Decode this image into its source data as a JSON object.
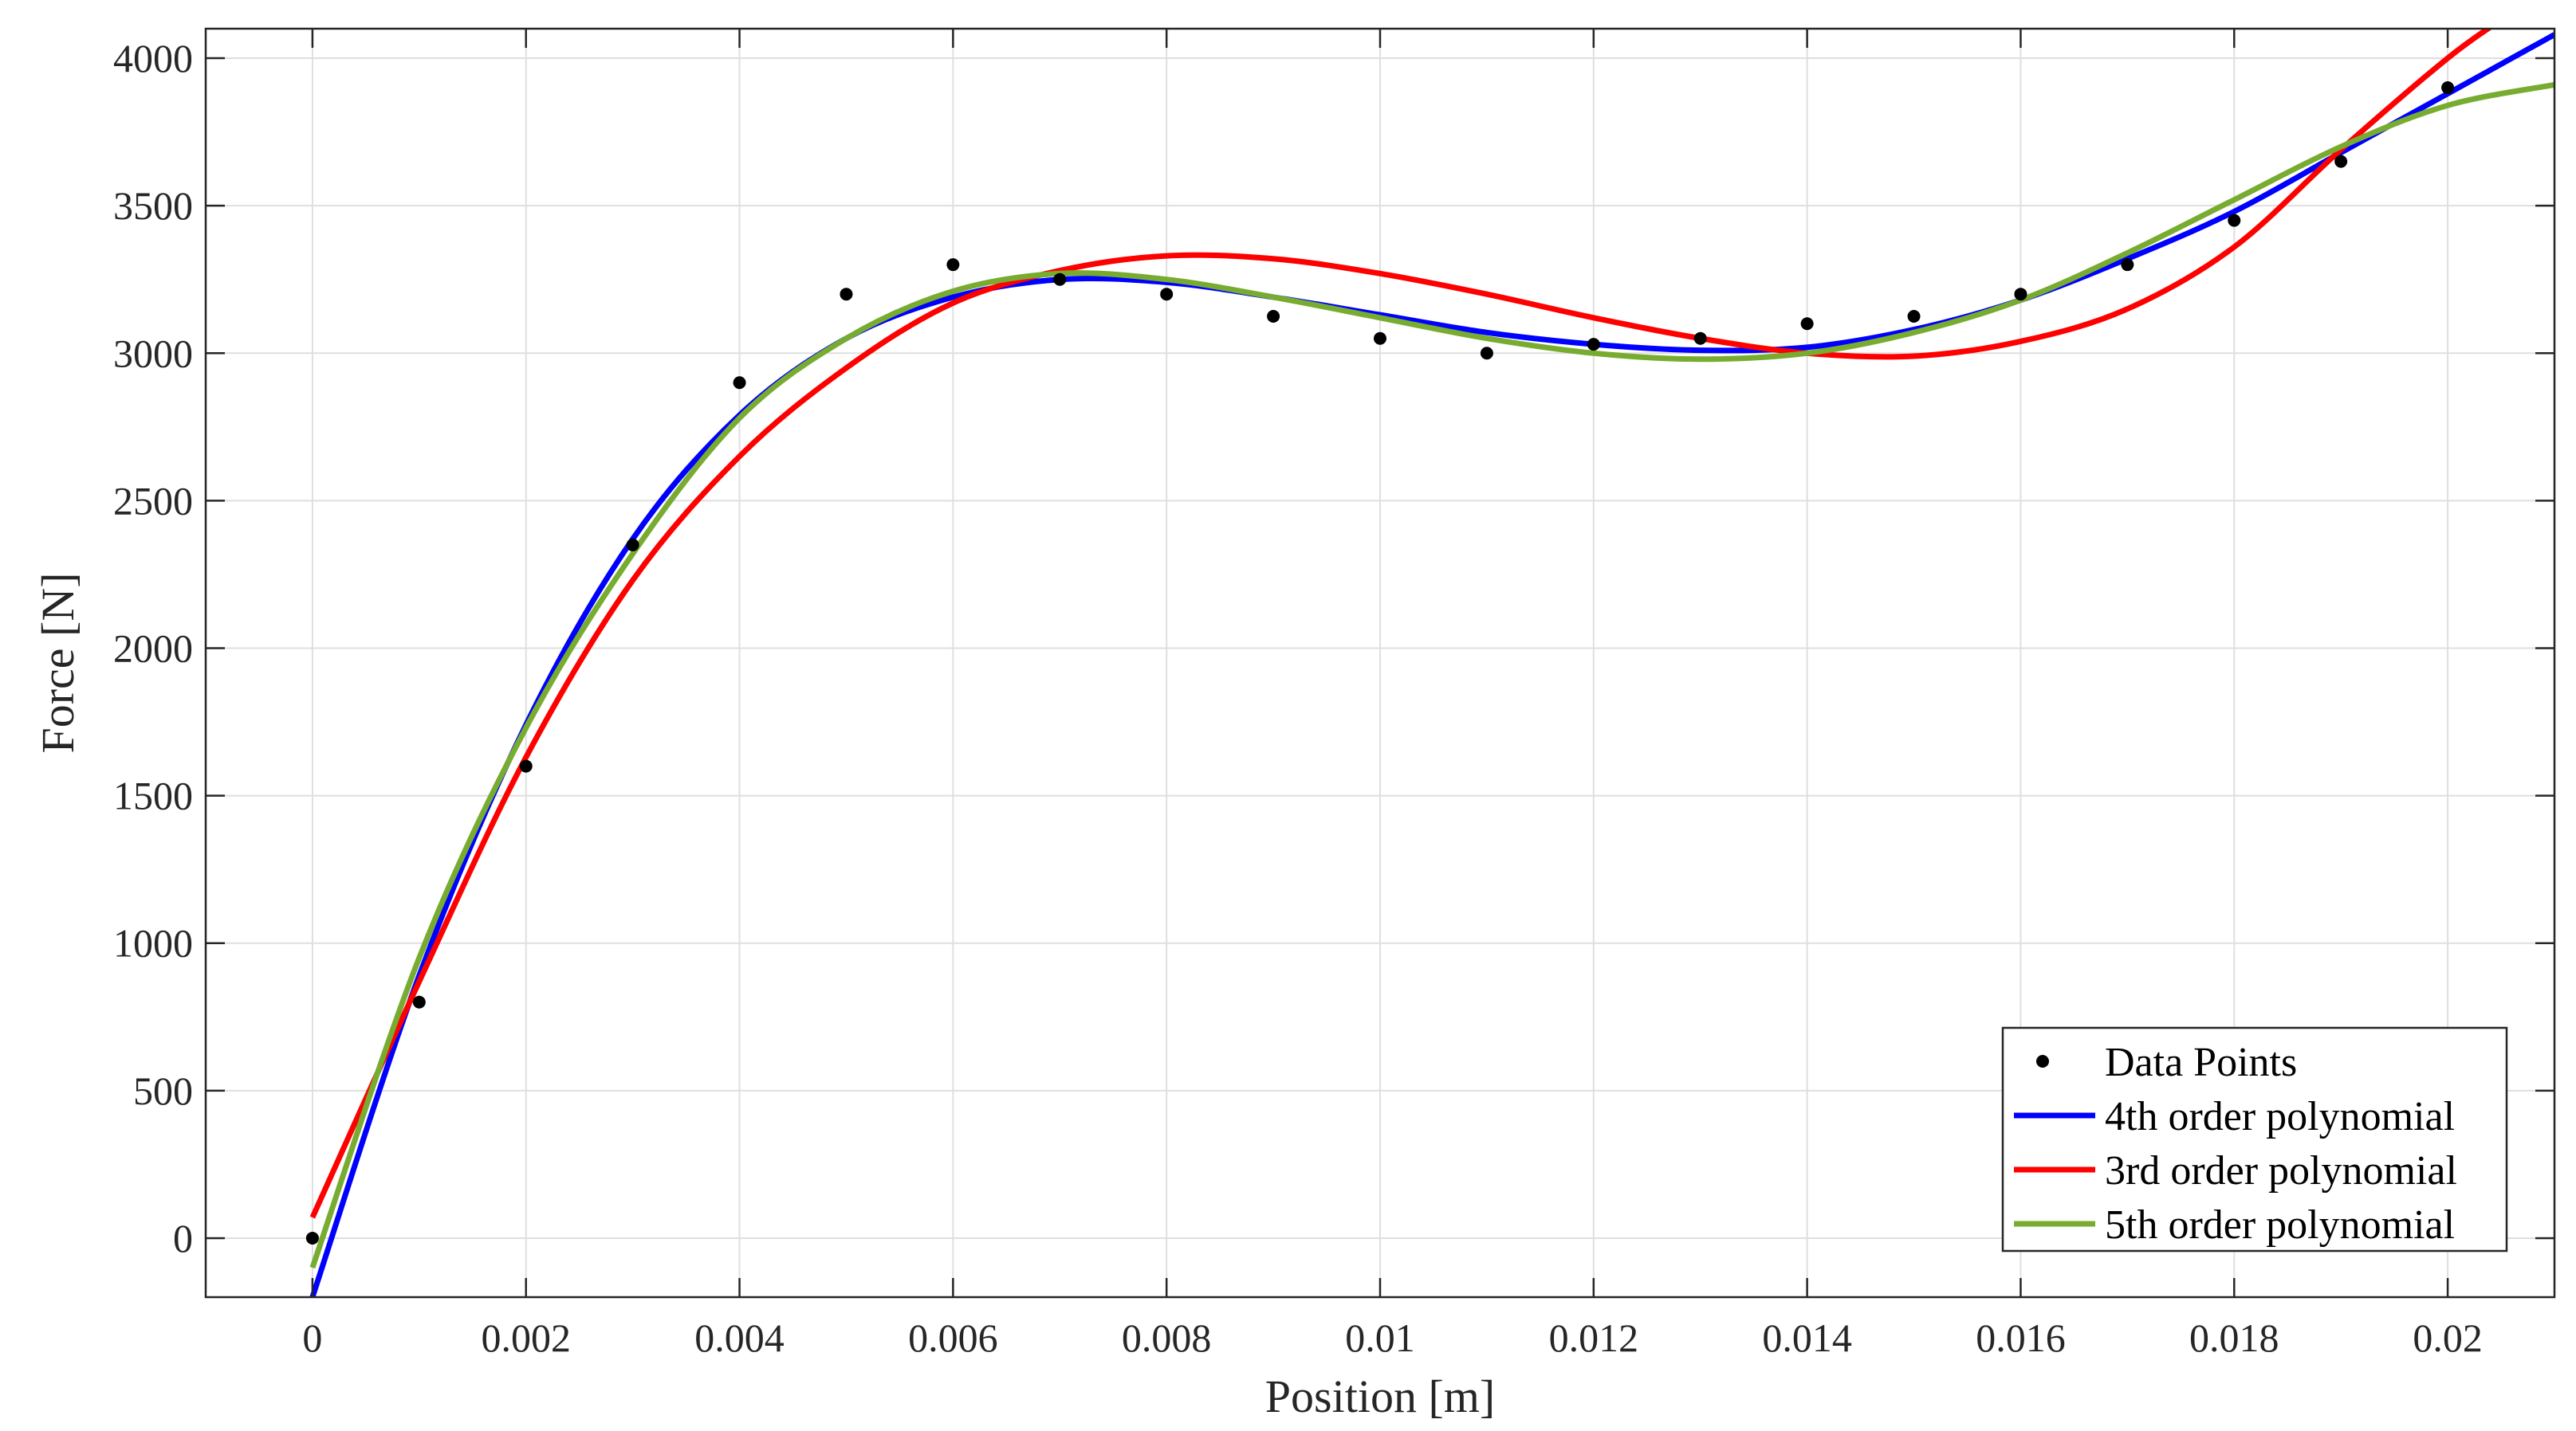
{
  "chart_data": {
    "type": "line",
    "xlabel": "Position [m]",
    "ylabel": "Force [N]",
    "xlim": [
      -0.001,
      0.021
    ],
    "ylim": [
      -200,
      4100
    ],
    "xticks": [
      0,
      0.002,
      0.004,
      0.006,
      0.008,
      0.01,
      0.012,
      0.014,
      0.016,
      0.018,
      0.02
    ],
    "xtick_labels": [
      "0",
      "0.002",
      "0.004",
      "0.006",
      "0.008",
      "0.01",
      "0.012",
      "0.014",
      "0.016",
      "0.018",
      "0.02"
    ],
    "yticks": [
      0,
      500,
      1000,
      1500,
      2000,
      2500,
      3000,
      3500,
      4000
    ],
    "ytick_labels": [
      "0",
      "500",
      "1000",
      "1500",
      "2000",
      "2500",
      "3000",
      "3500",
      "4000"
    ],
    "grid": true,
    "legend_position": "bottom-right",
    "series": [
      {
        "name": "Data Points",
        "kind": "scatter",
        "color": "#000000",
        "x": [
          0,
          0.001,
          0.002,
          0.003,
          0.004,
          0.005,
          0.006,
          0.007,
          0.008,
          0.009,
          0.01,
          0.011,
          0.012,
          0.013,
          0.014,
          0.015,
          0.016,
          0.017,
          0.018,
          0.019,
          0.02
        ],
        "y": [
          0,
          800,
          1600,
          2350,
          2900,
          3200,
          3300,
          3250,
          3200,
          3125,
          3050,
          3000,
          3030,
          3050,
          3100,
          3125,
          3200,
          3300,
          3450,
          3650,
          3900
        ]
      },
      {
        "name": "4th order polynomial",
        "kind": "line",
        "color": "#0000ff",
        "x": [
          0,
          0.001,
          0.002,
          0.003,
          0.004,
          0.005,
          0.006,
          0.007,
          0.008,
          0.009,
          0.01,
          0.011,
          0.012,
          0.013,
          0.014,
          0.015,
          0.016,
          0.017,
          0.018,
          0.019,
          0.02,
          0.021
        ],
        "y": [
          -200,
          890,
          1740,
          2370,
          2790,
          3050,
          3190,
          3250,
          3240,
          3190,
          3130,
          3070,
          3030,
          3010,
          3020,
          3080,
          3180,
          3320,
          3480,
          3680,
          3880,
          4080
        ]
      },
      {
        "name": "3rd order polynomial",
        "kind": "line",
        "color": "#ff0000",
        "x": [
          0,
          0.001,
          0.002,
          0.003,
          0.004,
          0.005,
          0.006,
          0.007,
          0.008,
          0.009,
          0.01,
          0.011,
          0.012,
          0.013,
          0.014,
          0.015,
          0.016,
          0.017,
          0.018,
          0.019,
          0.02,
          0.0205
        ],
        "y": [
          70,
          870,
          1630,
          2230,
          2650,
          2950,
          3170,
          3280,
          3330,
          3320,
          3270,
          3200,
          3120,
          3050,
          3000,
          2990,
          3040,
          3150,
          3360,
          3690,
          4000,
          4130
        ]
      },
      {
        "name": "5th order polynomial",
        "kind": "line",
        "color": "#77ac30",
        "x": [
          0,
          0.001,
          0.002,
          0.003,
          0.004,
          0.005,
          0.006,
          0.007,
          0.008,
          0.009,
          0.01,
          0.011,
          0.012,
          0.013,
          0.014,
          0.015,
          0.016,
          0.017,
          0.018,
          0.019,
          0.02,
          0.021
        ],
        "y": [
          -100,
          950,
          1730,
          2320,
          2780,
          3050,
          3210,
          3270,
          3250,
          3190,
          3120,
          3050,
          3000,
          2980,
          3000,
          3070,
          3180,
          3340,
          3520,
          3700,
          3840,
          3910
        ]
      }
    ]
  }
}
